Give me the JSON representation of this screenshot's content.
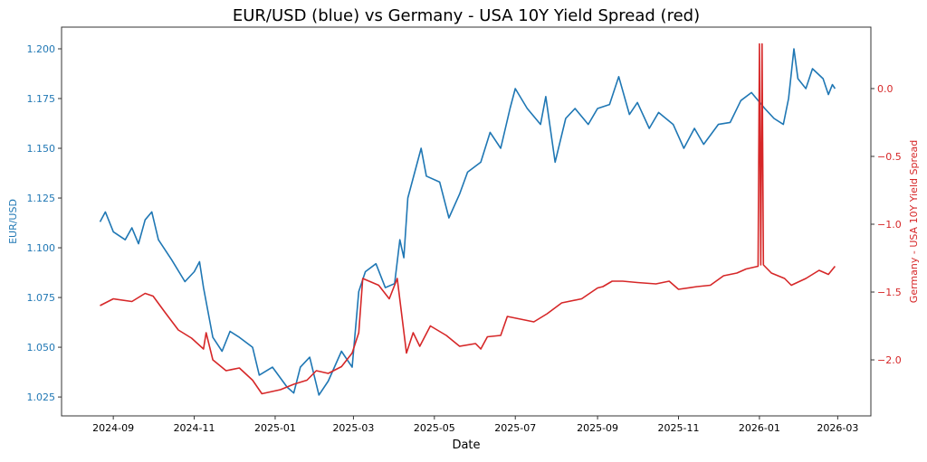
{
  "chart_data": {
    "type": "line",
    "title": "EUR/USD (blue) vs Germany - USA 10Y Yield Spread (red)",
    "xlabel": "Date",
    "ylabel_left": "EUR/USD",
    "ylabel_right": "Germany - USA 10Y Yield Spread",
    "xlim": [
      "2024-07-24",
      "2026-03-26"
    ],
    "ylim_left": [
      1.0155,
      1.2109
    ],
    "ylim_right": [
      -2.413,
      0.453
    ],
    "grid": false,
    "x_ticks": [
      "2024-09",
      "2024-11",
      "2025-01",
      "2025-03",
      "2025-05",
      "2025-07",
      "2025-09",
      "2025-11",
      "2026-01",
      "2026-03"
    ],
    "y_ticks_left": [
      "1.025",
      "1.050",
      "1.075",
      "1.100",
      "1.125",
      "1.150",
      "1.175",
      "1.200"
    ],
    "y_ticks_right": [
      "−2.0",
      "−1.5",
      "−1.0",
      "−0.5",
      "0.0"
    ],
    "colors": {
      "left": "#1f77b4",
      "right": "#d62728"
    },
    "series": [
      {
        "axis": "left",
        "color": "#1f77b4",
        "points": [
          [
            "2024-08-22",
            1.113
          ],
          [
            "2024-08-26",
            1.118
          ],
          [
            "2024-09-01",
            1.108
          ],
          [
            "2024-09-10",
            1.104
          ],
          [
            "2024-09-15",
            1.11
          ],
          [
            "2024-09-20",
            1.102
          ],
          [
            "2024-09-25",
            1.114
          ],
          [
            "2024-09-30",
            1.118
          ],
          [
            "2024-10-05",
            1.104
          ],
          [
            "2024-10-15",
            1.094
          ],
          [
            "2024-10-25",
            1.083
          ],
          [
            "2024-11-01",
            1.088
          ],
          [
            "2024-11-05",
            1.093
          ],
          [
            "2024-11-08",
            1.08
          ],
          [
            "2024-11-15",
            1.055
          ],
          [
            "2024-11-22",
            1.048
          ],
          [
            "2024-11-28",
            1.058
          ],
          [
            "2024-12-05",
            1.055
          ],
          [
            "2024-12-15",
            1.05
          ],
          [
            "2024-12-20",
            1.036
          ],
          [
            "2024-12-30",
            1.04
          ],
          [
            "2025-01-10",
            1.03
          ],
          [
            "2025-01-15",
            1.027
          ],
          [
            "2025-01-20",
            1.04
          ],
          [
            "2025-01-27",
            1.045
          ],
          [
            "2025-02-03",
            1.026
          ],
          [
            "2025-02-10",
            1.033
          ],
          [
            "2025-02-20",
            1.048
          ],
          [
            "2025-02-28",
            1.04
          ],
          [
            "2025-03-05",
            1.078
          ],
          [
            "2025-03-10",
            1.088
          ],
          [
            "2025-03-18",
            1.092
          ],
          [
            "2025-03-25",
            1.08
          ],
          [
            "2025-04-01",
            1.082
          ],
          [
            "2025-04-05",
            1.104
          ],
          [
            "2025-04-08",
            1.095
          ],
          [
            "2025-04-11",
            1.125
          ],
          [
            "2025-04-21",
            1.15
          ],
          [
            "2025-04-25",
            1.136
          ],
          [
            "2025-05-05",
            1.133
          ],
          [
            "2025-05-12",
            1.115
          ],
          [
            "2025-05-20",
            1.127
          ],
          [
            "2025-05-26",
            1.138
          ],
          [
            "2025-06-05",
            1.143
          ],
          [
            "2025-06-12",
            1.158
          ],
          [
            "2025-06-20",
            1.15
          ],
          [
            "2025-06-27",
            1.17
          ],
          [
            "2025-07-01",
            1.18
          ],
          [
            "2025-07-10",
            1.17
          ],
          [
            "2025-07-20",
            1.162
          ],
          [
            "2025-07-24",
            1.176
          ],
          [
            "2025-07-31",
            1.143
          ],
          [
            "2025-08-08",
            1.165
          ],
          [
            "2025-08-15",
            1.17
          ],
          [
            "2025-08-25",
            1.162
          ],
          [
            "2025-09-01",
            1.17
          ],
          [
            "2025-09-10",
            1.172
          ],
          [
            "2025-09-17",
            1.186
          ],
          [
            "2025-09-25",
            1.167
          ],
          [
            "2025-10-01",
            1.173
          ],
          [
            "2025-10-10",
            1.16
          ],
          [
            "2025-10-17",
            1.168
          ],
          [
            "2025-10-28",
            1.162
          ],
          [
            "2025-11-05",
            1.15
          ],
          [
            "2025-11-13",
            1.16
          ],
          [
            "2025-11-20",
            1.152
          ],
          [
            "2025-12-01",
            1.162
          ],
          [
            "2025-12-10",
            1.163
          ],
          [
            "2025-12-18",
            1.174
          ],
          [
            "2025-12-26",
            1.178
          ],
          [
            "2026-01-05",
            1.17
          ],
          [
            "2026-01-12",
            1.165
          ],
          [
            "2026-01-19",
            1.162
          ],
          [
            "2026-01-23",
            1.175
          ],
          [
            "2026-01-27",
            1.2
          ],
          [
            "2026-01-30",
            1.185
          ],
          [
            "2026-02-05",
            1.18
          ],
          [
            "2026-02-10",
            1.19
          ],
          [
            "2026-02-18",
            1.185
          ],
          [
            "2026-02-22",
            1.177
          ],
          [
            "2026-02-25",
            1.182
          ],
          [
            "2026-02-27",
            1.18
          ]
        ]
      },
      {
        "axis": "right",
        "color": "#d62728",
        "points": [
          [
            "2024-08-22",
            -1.6
          ],
          [
            "2024-09-01",
            -1.55
          ],
          [
            "2024-09-15",
            -1.57
          ],
          [
            "2024-09-25",
            -1.51
          ],
          [
            "2024-10-01",
            -1.53
          ],
          [
            "2024-10-10",
            -1.65
          ],
          [
            "2024-10-20",
            -1.78
          ],
          [
            "2024-10-30",
            -1.84
          ],
          [
            "2024-11-08",
            -1.92
          ],
          [
            "2024-11-10",
            -1.8
          ],
          [
            "2024-11-15",
            -2.0
          ],
          [
            "2024-11-25",
            -2.08
          ],
          [
            "2024-12-05",
            -2.06
          ],
          [
            "2024-12-15",
            -2.15
          ],
          [
            "2024-12-22",
            -2.25
          ],
          [
            "2025-01-05",
            -2.22
          ],
          [
            "2025-01-15",
            -2.18
          ],
          [
            "2025-01-25",
            -2.15
          ],
          [
            "2025-02-01",
            -2.08
          ],
          [
            "2025-02-10",
            -2.1
          ],
          [
            "2025-02-20",
            -2.05
          ],
          [
            "2025-02-28",
            -1.95
          ],
          [
            "2025-03-05",
            -1.8
          ],
          [
            "2025-03-08",
            -1.4
          ],
          [
            "2025-03-20",
            -1.45
          ],
          [
            "2025-03-28",
            -1.55
          ],
          [
            "2025-04-03",
            -1.4
          ],
          [
            "2025-04-10",
            -1.95
          ],
          [
            "2025-04-15",
            -1.8
          ],
          [
            "2025-04-20",
            -1.9
          ],
          [
            "2025-04-28",
            -1.75
          ],
          [
            "2025-05-10",
            -1.82
          ],
          [
            "2025-05-20",
            -1.9
          ],
          [
            "2025-06-01",
            -1.88
          ],
          [
            "2025-06-05",
            -1.92
          ],
          [
            "2025-06-10",
            -1.83
          ],
          [
            "2025-06-20",
            -1.82
          ],
          [
            "2025-06-25",
            -1.68
          ],
          [
            "2025-07-15",
            -1.72
          ],
          [
            "2025-07-25",
            -1.66
          ],
          [
            "2025-08-05",
            -1.58
          ],
          [
            "2025-08-20",
            -1.55
          ],
          [
            "2025-09-01",
            -1.47
          ],
          [
            "2025-09-05",
            -1.46
          ],
          [
            "2025-09-12",
            -1.42
          ],
          [
            "2025-09-20",
            -1.42
          ],
          [
            "2025-10-01",
            -1.43
          ],
          [
            "2025-10-15",
            -1.44
          ],
          [
            "2025-10-25",
            -1.42
          ],
          [
            "2025-11-01",
            -1.48
          ],
          [
            "2025-11-15",
            -1.46
          ],
          [
            "2025-11-25",
            -1.45
          ],
          [
            "2025-12-05",
            -1.38
          ],
          [
            "2025-12-15",
            -1.36
          ],
          [
            "2025-12-22",
            -1.33
          ],
          [
            "2025-12-31",
            -1.31
          ],
          [
            "2026-01-01",
            0.33
          ],
          [
            "2026-01-02",
            -1.3
          ],
          [
            "2026-01-03",
            0.33
          ],
          [
            "2026-01-04",
            -1.3
          ],
          [
            "2026-01-10",
            -1.36
          ],
          [
            "2026-01-20",
            -1.4
          ],
          [
            "2026-01-25",
            -1.45
          ],
          [
            "2026-02-05",
            -1.4
          ],
          [
            "2026-02-15",
            -1.34
          ],
          [
            "2026-02-22",
            -1.37
          ],
          [
            "2026-02-27",
            -1.31
          ]
        ]
      }
    ]
  }
}
